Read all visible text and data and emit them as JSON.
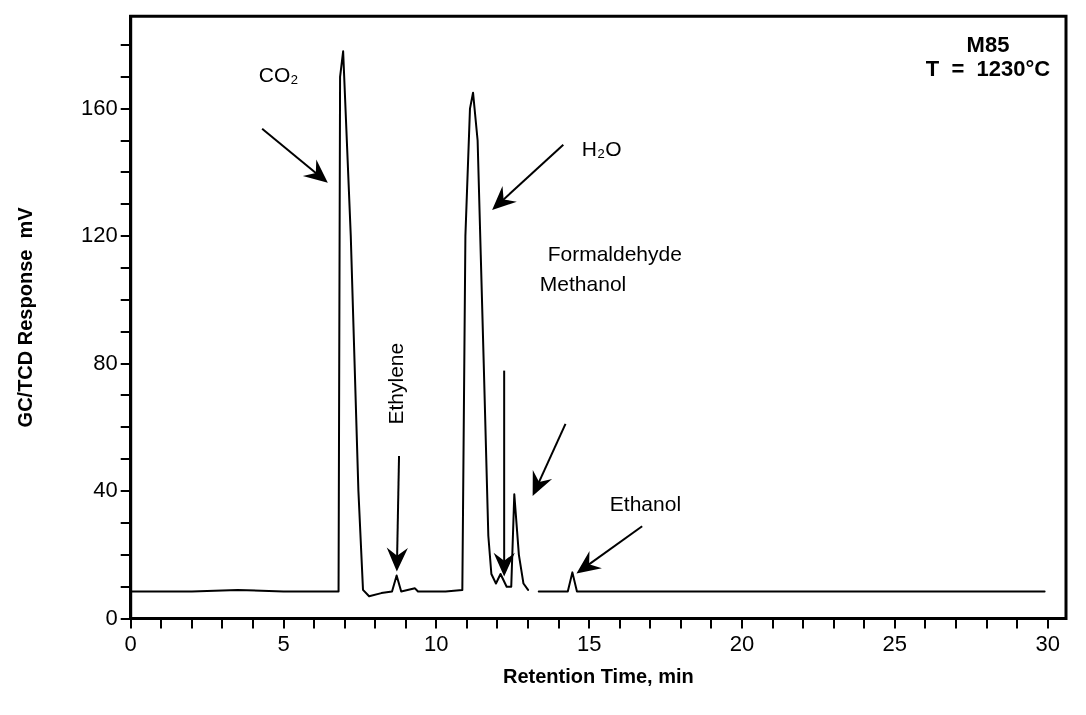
{
  "chart_data": {
    "type": "line",
    "xlabel": "Retention Time, min",
    "ylabel": "GC/TCD Response  mV",
    "xlim": [
      0,
      30.6
    ],
    "ylim": [
      0,
      189
    ],
    "xticks": [
      0,
      {
        "value": 1,
        "label": null
      },
      {
        "value": 2,
        "label": null
      },
      {
        "value": 3,
        "label": null
      },
      {
        "value": 4,
        "label": null
      },
      5,
      {
        "value": 6,
        "label": null
      },
      {
        "value": 7,
        "label": null
      },
      {
        "value": 8,
        "label": null
      },
      {
        "value": 9,
        "label": null
      },
      10,
      {
        "value": 11,
        "label": null
      },
      {
        "value": 12,
        "label": null
      },
      {
        "value": 13,
        "label": null
      },
      {
        "value": 14,
        "label": null
      },
      15,
      {
        "value": 16,
        "label": null
      },
      {
        "value": 17,
        "label": null
      },
      {
        "value": 18,
        "label": null
      },
      {
        "value": 19,
        "label": null
      },
      20,
      {
        "value": 21,
        "label": null
      },
      {
        "value": 22,
        "label": null
      },
      {
        "value": 23,
        "label": null
      },
      {
        "value": 24,
        "label": null
      },
      25,
      {
        "value": 26,
        "label": null
      },
      {
        "value": 27,
        "label": null
      },
      {
        "value": 28,
        "label": null
      },
      {
        "value": 29,
        "label": null
      },
      30
    ],
    "yticks": [
      0,
      {
        "value": 10,
        "label": null
      },
      {
        "value": 20,
        "label": null
      },
      {
        "value": 30,
        "label": null
      },
      40,
      {
        "value": 50,
        "label": null
      },
      {
        "value": 60,
        "label": null
      },
      {
        "value": 70,
        "label": null
      },
      80,
      {
        "value": 90,
        "label": null
      },
      {
        "value": 100,
        "label": null
      },
      {
        "value": 110,
        "label": null
      },
      120,
      {
        "value": 130,
        "label": null
      },
      {
        "value": 140,
        "label": null
      },
      {
        "value": 150,
        "label": null
      },
      160,
      {
        "value": 170,
        "label": null
      },
      {
        "value": 180,
        "label": null
      }
    ],
    "grid": false,
    "legend": false,
    "marker": "none",
    "line_style": "solid",
    "series": [
      {
        "color": "#000000",
        "x": [
          0,
          2,
          3.5,
          5,
          6.8,
          6.85,
          6.95,
          7.2,
          7.45,
          7.6,
          7.8,
          8.2,
          8.55,
          8.7,
          8.85,
          9.3,
          9.4,
          9.5,
          10.3,
          10.85,
          10.95,
          11.1,
          11.2,
          11.35,
          11.55,
          11.7,
          11.8,
          11.95,
          12.1,
          12.3,
          12.45,
          12.55,
          12.7,
          12.85,
          13.0,
          13.1,
          13.2,
          13.35,
          14.3,
          14.45,
          14.6,
          14.75,
          15,
          20,
          25,
          29.9
        ],
        "values": [
          8.5,
          8.5,
          9,
          8.5,
          8.5,
          170,
          178,
          120,
          40,
          9,
          7,
          8,
          8.5,
          13.5,
          8.5,
          9.5,
          8.5,
          8.5,
          8.5,
          9,
          120,
          160,
          165,
          150,
          80,
          26,
          14,
          11,
          14,
          10,
          10,
          39,
          20,
          11,
          9,
          null,
          null,
          8.5,
          8.5,
          14.5,
          8.5,
          8.5,
          8.5,
          8.5,
          8.5,
          8.5
        ]
      }
    ],
    "annotations": [
      "CO₂",
      "H₂O",
      "Ethylene",
      "Formaldehyde",
      "Methanol",
      "Ethanol",
      "M85",
      "T  =  1230°C"
    ]
  }
}
